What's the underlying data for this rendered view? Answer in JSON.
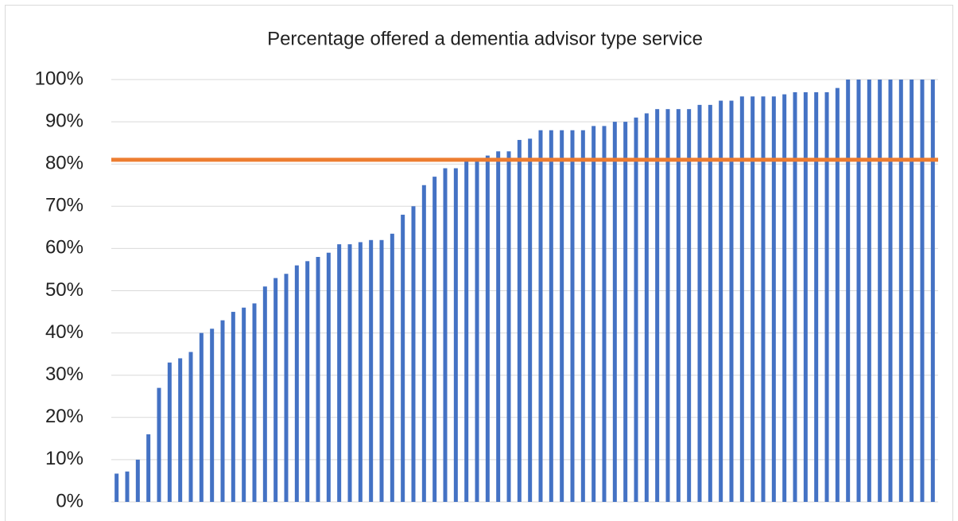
{
  "chart_data": {
    "type": "bar",
    "title": "Percentage offered a dementia advisor type service",
    "categories": [
      null,
      null,
      null,
      null,
      null,
      null,
      null,
      null,
      null,
      null,
      null,
      null,
      null,
      null,
      null,
      null,
      null,
      null,
      null,
      null,
      null,
      null,
      null,
      null,
      null,
      null,
      null,
      null,
      null,
      null,
      null,
      null,
      null,
      null,
      null,
      null,
      null,
      null,
      null,
      null,
      null,
      null,
      null,
      null,
      null,
      null,
      null,
      null,
      null,
      null,
      null,
      null,
      null,
      null,
      null,
      null,
      null,
      null,
      null,
      null,
      null,
      null,
      null,
      null,
      null,
      null,
      null,
      null,
      null,
      null,
      null,
      null,
      null,
      null,
      null,
      null,
      null,
      null
    ],
    "values": [
      6.7,
      7.2,
      10,
      16,
      27,
      33,
      34,
      35.5,
      40,
      41,
      43,
      45,
      46,
      47,
      51,
      53,
      54,
      56,
      57,
      58,
      59,
      61,
      61,
      61.5,
      62,
      62,
      63.5,
      68,
      70,
      75,
      77,
      79,
      79,
      81,
      81,
      82,
      83,
      83,
      85.7,
      86,
      88,
      88,
      88,
      88,
      88,
      89,
      89,
      90,
      90,
      91,
      92,
      93,
      93,
      93,
      93,
      94,
      94,
      95,
      95,
      96,
      96,
      96,
      96,
      96.5,
      97,
      97,
      97,
      97,
      98,
      100,
      100,
      100,
      100,
      100,
      100,
      100,
      100,
      100
    ],
    "color": "#4472c4",
    "reference_line": {
      "value": 81,
      "color": "#ed7d31"
    },
    "ylim": [
      0,
      100
    ],
    "yticks": [
      {
        "value": 0,
        "label": "0%"
      },
      {
        "value": 10,
        "label": "10%"
      },
      {
        "value": 20,
        "label": "20%"
      },
      {
        "value": 30,
        "label": "30%"
      },
      {
        "value": 40,
        "label": "40%"
      },
      {
        "value": 50,
        "label": "50%"
      },
      {
        "value": 60,
        "label": "60%"
      },
      {
        "value": 70,
        "label": "70%"
      },
      {
        "value": 80,
        "label": "80%"
      },
      {
        "value": 90,
        "label": "90%"
      },
      {
        "value": 100,
        "label": "100%"
      }
    ],
    "grid": true
  }
}
